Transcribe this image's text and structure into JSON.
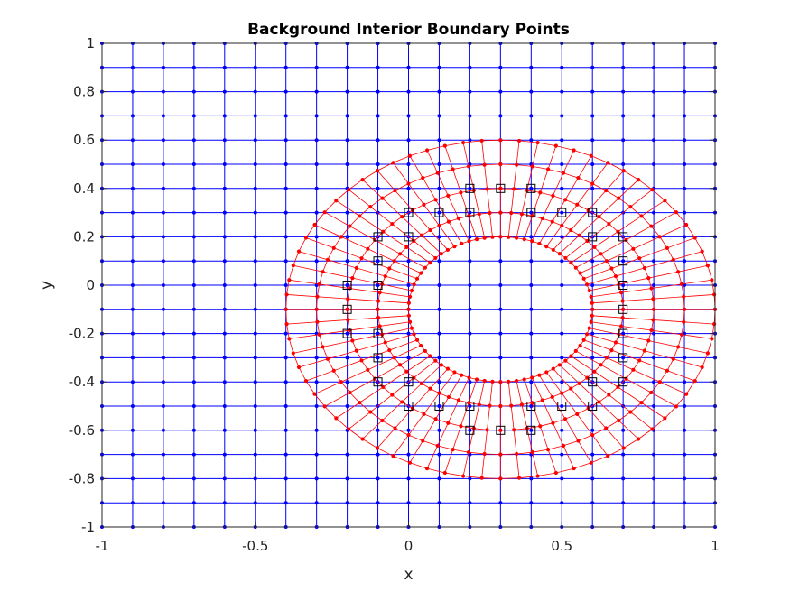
{
  "chart_data": {
    "type": "scatter",
    "title": "Background Interior Boundary Points",
    "xlabel": "x",
    "ylabel": "y",
    "xlim": [
      -1,
      1
    ],
    "ylim": [
      -1,
      1
    ],
    "grid": false,
    "xticks": [
      "-1",
      "-0.5",
      "0",
      "0.5",
      "1"
    ],
    "xtick_values": [
      -1,
      -0.5,
      0,
      0.5,
      1
    ],
    "yticks": [
      "1",
      "0.8",
      "0.6",
      "0.4",
      "0.2",
      "0",
      "-0.2",
      "-0.4",
      "-0.6",
      "-0.8",
      "-1"
    ],
    "ytick_values": [
      1,
      0.8,
      0.6,
      0.4,
      0.2,
      0,
      -0.2,
      -0.4,
      -0.6,
      -0.8,
      -1
    ],
    "colors": {
      "background": "#0000ff",
      "overlay": "#ff0000",
      "boundary": "#000000"
    },
    "background_grid": {
      "x_start": -1,
      "x_end": 1,
      "x_step": 0.1,
      "y_start": -1,
      "y_end": 1,
      "y_step": 0.1
    },
    "overlay_grid": {
      "center": [
        0.3,
        -0.1
      ],
      "radii_x": [
        0.3,
        0.4,
        0.5,
        0.6,
        0.7
      ],
      "radii_y": [
        0.3,
        0.4,
        0.5,
        0.6,
        0.7
      ],
      "points_per_ring": 72
    },
    "boundary_points": {
      "x": [
        0.2,
        0.3,
        0.4,
        0.0,
        0.1,
        0.2,
        0.4,
        0.5,
        0.6,
        -0.1,
        0.0,
        0.6,
        0.7,
        -0.1,
        0.7,
        -0.2,
        -0.1,
        0.7,
        -0.2,
        0.7,
        -0.2,
        -0.1,
        0.7,
        -0.1,
        0.7,
        -0.1,
        0.0,
        0.6,
        0.7,
        0.0,
        0.1,
        0.2,
        0.4,
        0.5,
        0.6,
        0.2,
        0.3,
        0.4
      ],
      "y": [
        0.4,
        0.4,
        0.4,
        0.3,
        0.3,
        0.3,
        0.3,
        0.3,
        0.3,
        0.2,
        0.2,
        0.2,
        0.2,
        0.1,
        0.1,
        0.0,
        0.0,
        0.0,
        -0.1,
        -0.1,
        -0.2,
        -0.2,
        -0.2,
        -0.3,
        -0.3,
        -0.4,
        -0.4,
        -0.4,
        -0.4,
        -0.5,
        -0.5,
        -0.5,
        -0.5,
        -0.5,
        -0.5,
        -0.6,
        -0.6,
        -0.6
      ]
    }
  }
}
